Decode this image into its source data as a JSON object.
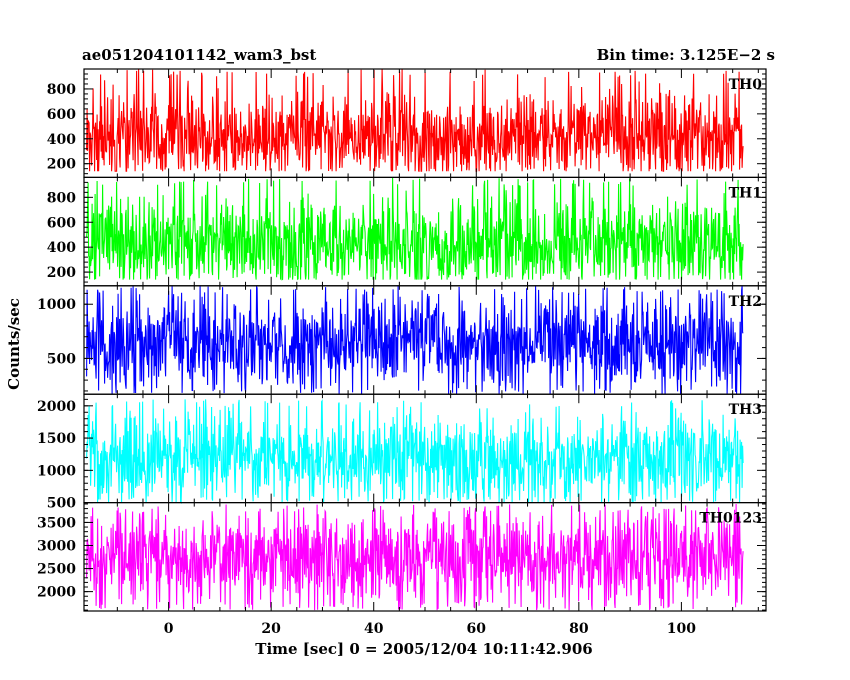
{
  "header": {
    "left_title": "ae051204101142_wam3_bst",
    "right_title": "Bin time: 3.125E−2 s"
  },
  "chart_data": {
    "type": "line",
    "title": "ae051204101142_wam3_bst",
    "subtitle": "Bin time: 3.125E−2 s",
    "xlabel": "Time [sec] 0 = 2005/12/04 10:11:42.906",
    "ylabel": "Counts/sec",
    "xlim": [
      -16.5,
      116.5
    ],
    "x_ticks": [
      0,
      20,
      40,
      60,
      80,
      100
    ],
    "x_range_data": [
      -16,
      112
    ],
    "bin_time": 0.03125,
    "grid": false,
    "panels": [
      {
        "name": "TH0",
        "color": "#ff0000",
        "ylim": [
          90,
          960
        ],
        "y_ticks": [
          200,
          400,
          600,
          800
        ],
        "mean": 420,
        "low": 140,
        "high": 960
      },
      {
        "name": "TH1",
        "color": "#00ff00",
        "ylim": [
          90,
          960
        ],
        "y_ticks": [
          200,
          400,
          600,
          800
        ],
        "mean": 430,
        "low": 140,
        "high": 960
      },
      {
        "name": "TH2",
        "color": "#0000ff",
        "ylim": [
          170,
          1170
        ],
        "y_ticks": [
          500,
          1000
        ],
        "mean": 640,
        "low": 170,
        "high": 1170
      },
      {
        "name": "TH3",
        "color": "#00ffff",
        "ylim": [
          500,
          2180
        ],
        "y_ticks": [
          500,
          1000,
          1500,
          2000
        ],
        "mean": 1200,
        "low": 500,
        "high": 2100
      },
      {
        "name": "TH0123",
        "color": "#ff00ff",
        "ylim": [
          1580,
          3930
        ],
        "y_ticks": [
          2000,
          2500,
          3000,
          3500
        ],
        "mean": 2720,
        "low": 1600,
        "high": 3900
      }
    ]
  }
}
